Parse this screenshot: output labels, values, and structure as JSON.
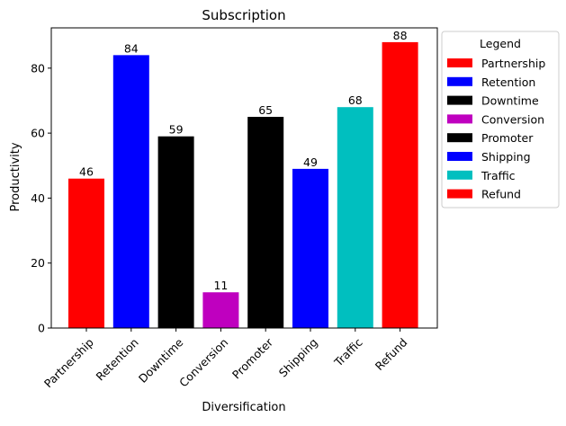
{
  "chart_data": {
    "type": "bar",
    "title": "Subscription",
    "xlabel": "Diversification",
    "ylabel": "Productivity",
    "categories": [
      "Partnership",
      "Retention",
      "Downtime",
      "Conversion",
      "Promoter",
      "Shipping",
      "Traffic",
      "Refund"
    ],
    "values": [
      46,
      84,
      59,
      11,
      65,
      49,
      68,
      88
    ],
    "colors": [
      "#ff0000",
      "#0000ff",
      "#000000",
      "#bf00bf",
      "#000000",
      "#0000ff",
      "#00bfbf",
      "#ff0000"
    ],
    "ylim": [
      0,
      92.4
    ],
    "yticks": [
      0,
      20,
      40,
      60,
      80
    ],
    "grid": false,
    "legend": {
      "title": "Legend",
      "placement": "outside-right-top",
      "entries": [
        {
          "label": "Partnership",
          "color": "#ff0000"
        },
        {
          "label": "Retention",
          "color": "#0000ff"
        },
        {
          "label": "Downtime",
          "color": "#000000"
        },
        {
          "label": "Conversion",
          "color": "#bf00bf"
        },
        {
          "label": "Promoter",
          "color": "#000000"
        },
        {
          "label": "Shipping",
          "color": "#0000ff"
        },
        {
          "label": "Traffic",
          "color": "#00bfbf"
        },
        {
          "label": "Refund",
          "color": "#ff0000"
        }
      ]
    }
  }
}
